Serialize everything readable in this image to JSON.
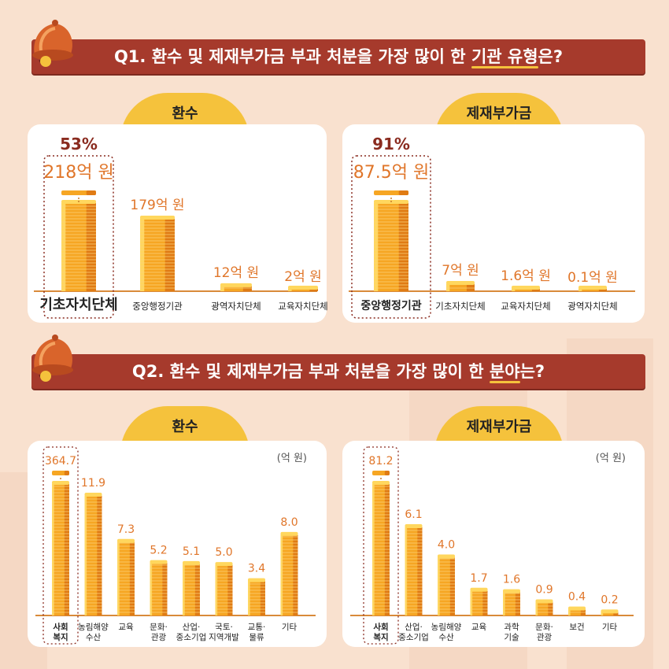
{
  "q1": {
    "title_prefix": "Q1. 환수 및 제재부가금 부과 처분을 가장 많이 한 ",
    "title_highlight": "기관 유형",
    "title_suffix": "은?"
  },
  "q2": {
    "title_prefix": "Q2. 환수 및 제재부가금 부과 처분을 가장 많이 한 ",
    "title_highlight": "분야",
    "title_suffix": "는?"
  },
  "tabs": {
    "recovery": "환수",
    "surcharge": "제재부가금"
  },
  "unit_label": "(억 원)",
  "colors": {
    "title_bar": "#a63a2c",
    "tab": "#f5c23c",
    "coin_main": "#f6a623",
    "coin_dark": "#e07b14",
    "coin_light": "#ffd75e",
    "value_text": "#e0762a",
    "percent_text": "#8a2b1f"
  },
  "chart_data": [
    {
      "type": "bar",
      "categories": [
        "기초자치단체",
        "중앙행정기관",
        "광역자치단체",
        "교육자치단체"
      ],
      "values": [
        218,
        179,
        12,
        2
      ],
      "value_labels": [
        "218억 원",
        "179억 원",
        "12억 원",
        "2억 원"
      ],
      "highlight_index": 0,
      "highlight_percent": "53%"
    },
    {
      "type": "bar",
      "categories": [
        "중앙행정기관",
        "기초자치단체",
        "교육자치단체",
        "광역자치단체"
      ],
      "values": [
        87.5,
        7,
        1.6,
        0.1
      ],
      "value_labels": [
        "87.5억 원",
        "7억 원",
        "1.6억 원",
        "0.1억 원"
      ],
      "highlight_index": 0,
      "highlight_percent": "91%"
    },
    {
      "type": "bar",
      "categories": [
        "사회\n복지",
        "농림해양\n수산",
        "교육",
        "문화·\n관광",
        "산업·\n중소기업",
        "국토·\n지역개발",
        "교통·\n물류",
        "기타"
      ],
      "values": [
        364.7,
        11.9,
        7.3,
        5.2,
        5.1,
        5.0,
        3.4,
        8.0
      ],
      "value_labels": [
        "364.7",
        "11.9",
        "7.3",
        "5.2",
        "5.1",
        "5.0",
        "3.4",
        "8.0"
      ],
      "highlight_index": 0
    },
    {
      "type": "bar",
      "categories": [
        "사회\n복지",
        "산업·\n중소기업",
        "농림해양\n수산",
        "교육",
        "과학\n기술",
        "문화·\n관광",
        "보건",
        "기타"
      ],
      "values": [
        81.2,
        6.1,
        4.0,
        1.7,
        1.6,
        0.9,
        0.4,
        0.2
      ],
      "value_labels": [
        "81.2",
        "6.1",
        "4.0",
        "1.7",
        "1.6",
        "0.9",
        "0.4",
        "0.2"
      ],
      "highlight_index": 0
    }
  ]
}
